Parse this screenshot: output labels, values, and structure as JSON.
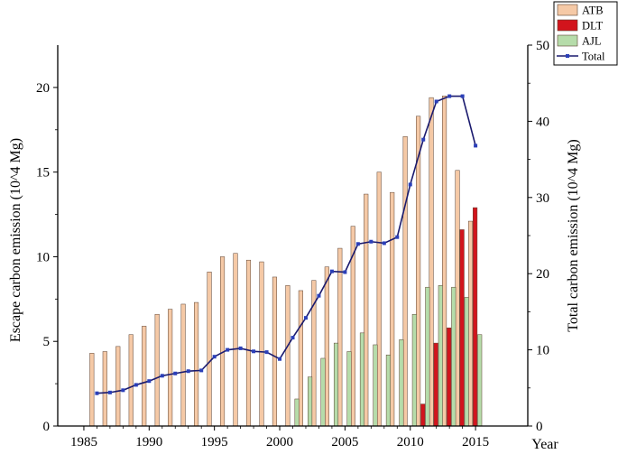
{
  "chart_data": {
    "type": "bar",
    "xlabel": "Year",
    "ylabel_left": "Escape carbon emission (10^4 Mg)",
    "ylabel_right": "Total carbon emission (10^4 Mg)",
    "xlim": [
      1983,
      2019
    ],
    "ylim_left": [
      0,
      22.5
    ],
    "ylim_right": [
      0,
      50
    ],
    "x_ticks": [
      1985,
      1990,
      1995,
      2000,
      2005,
      2010,
      2015
    ],
    "y_ticks_left": [
      0,
      5,
      10,
      15,
      20
    ],
    "y_ticks_right": [
      0,
      10,
      20,
      30,
      40,
      50
    ],
    "legend_position": "top-right",
    "years": [
      1986,
      1987,
      1988,
      1989,
      1990,
      1991,
      1992,
      1993,
      1994,
      1995,
      1996,
      1997,
      1998,
      1999,
      2000,
      2001,
      2002,
      2003,
      2004,
      2005,
      2006,
      2007,
      2008,
      2009,
      2010,
      2011,
      2012,
      2013,
      2014,
      2015
    ],
    "series": [
      {
        "name": "ATB",
        "kind": "bar",
        "axis": "left",
        "color": "#f5c9a6",
        "values": [
          4.3,
          4.4,
          4.7,
          5.4,
          5.9,
          6.6,
          6.9,
          7.2,
          7.3,
          9.1,
          10.0,
          10.2,
          9.8,
          9.7,
          8.8,
          8.3,
          8.0,
          8.6,
          9.4,
          10.5,
          11.8,
          13.7,
          15.0,
          13.8,
          17.1,
          18.3,
          19.4,
          19.5,
          15.1,
          12.1
        ]
      },
      {
        "name": "DLT",
        "kind": "bar",
        "axis": "left",
        "color": "#d2141c",
        "values": [
          0,
          0,
          0,
          0,
          0,
          0,
          0,
          0,
          0,
          0,
          0,
          0,
          0,
          0,
          0,
          0,
          0,
          0,
          0,
          0,
          0,
          0,
          0,
          0,
          0,
          1.3,
          4.9,
          5.8,
          11.6,
          12.9
        ]
      },
      {
        "name": "AJL",
        "kind": "bar",
        "axis": "left",
        "color": "#b6dcaa",
        "values": [
          0,
          0,
          0,
          0,
          0,
          0,
          0,
          0,
          0,
          0,
          0,
          0,
          0,
          0,
          0,
          1.6,
          2.9,
          4.0,
          4.9,
          4.4,
          5.5,
          4.8,
          4.2,
          5.1,
          6.6,
          8.2,
          8.3,
          8.2,
          7.6,
          5.4
        ]
      },
      {
        "name": "Total",
        "kind": "line",
        "axis": "right",
        "color": "#1a1a6e",
        "marker_color": "#2b3fb8",
        "values": [
          4.3,
          4.4,
          4.7,
          5.4,
          5.9,
          6.6,
          6.9,
          7.2,
          7.3,
          9.1,
          10.0,
          10.2,
          9.8,
          9.7,
          8.8,
          11.6,
          14.2,
          17.1,
          20.3,
          20.2,
          23.9,
          24.2,
          24.0,
          24.8,
          31.7,
          37.6,
          42.6,
          43.3,
          43.3,
          36.8
        ]
      }
    ]
  }
}
